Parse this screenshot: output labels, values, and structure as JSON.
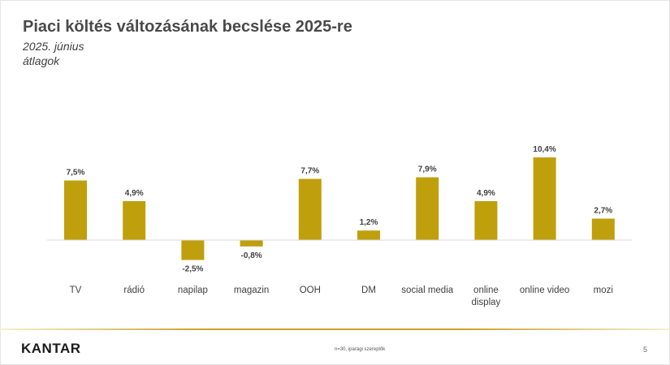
{
  "slide": {
    "title": "Piaci költés változásának becslése 2025-re",
    "subtitle": "2025. június",
    "subtitle2": "átlagok",
    "logo": "KANTAR",
    "footnote": "n=30, iparági szereplők",
    "page_number": "5"
  },
  "colors": {
    "bar": "#c09f0c",
    "axis": "#d9d9d9",
    "label": "#404040"
  },
  "chart_data": {
    "type": "bar",
    "title": "Piaci költés változásának becslése 2025-re",
    "categories": [
      "TV",
      "rádió",
      "napilap",
      "magazin",
      "OOH",
      "DM",
      "social media",
      "online display",
      "online video",
      "mozi"
    ],
    "category_lines": [
      [
        "TV"
      ],
      [
        "rádió"
      ],
      [
        "napilap"
      ],
      [
        "magazin"
      ],
      [
        "OOH"
      ],
      [
        "DM"
      ],
      [
        "social media"
      ],
      [
        "online",
        "display"
      ],
      [
        "online video"
      ],
      [
        "mozi"
      ]
    ],
    "values": [
      7.5,
      4.9,
      -2.5,
      -0.8,
      7.7,
      1.2,
      7.9,
      4.9,
      10.4,
      2.7
    ],
    "value_labels": [
      "7,5%",
      "4,9%",
      "-2,5%",
      "-0,8%",
      "7,7%",
      "1,2%",
      "7,9%",
      "4,9%",
      "10,4%",
      "2,7%"
    ],
    "unit": "%",
    "ylim": [
      -2.5,
      10.4
    ],
    "grid": false,
    "legend": "none"
  }
}
